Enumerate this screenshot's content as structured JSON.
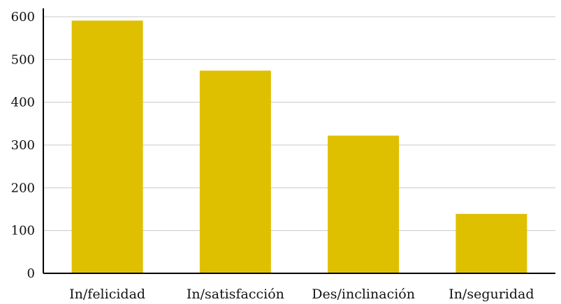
{
  "chart_data": {
    "type": "bar",
    "title": "",
    "xlabel": "",
    "ylabel": "",
    "categories": [
      "In/felicidad",
      "In/satisfacción",
      "Des/inclinación",
      "In/seguridad"
    ],
    "values": [
      591,
      474,
      322,
      139
    ],
    "ylim": [
      0,
      600
    ],
    "yticks": [
      0,
      100,
      200,
      300,
      400,
      500,
      600
    ],
    "grid": true,
    "legend": "none",
    "colors": {
      "bar": "#dfc000",
      "grid": "#c8c8c8",
      "axis": "#000000"
    }
  }
}
